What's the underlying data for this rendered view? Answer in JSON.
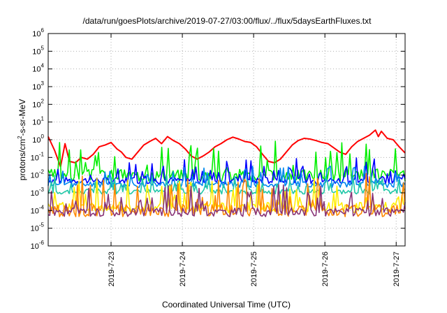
{
  "chart_data": {
    "type": "line",
    "title": "/data/run/goesPlots/archive/2019-07-27/03:00/flux/../flux/5daysEarthFluxes.txt",
    "xlabel": "Coordinated Universal Time (UTC)",
    "ylabel_parts": [
      "protons/cm",
      "2",
      "-s-sr-MeV"
    ],
    "y_scale": "log",
    "ylim": [
      1e-06,
      1000000.0
    ],
    "y_ticks": [
      {
        "base": "10",
        "exp": "6",
        "value": 1000000.0
      },
      {
        "base": "10",
        "exp": "5",
        "value": 100000.0
      },
      {
        "base": "10",
        "exp": "4",
        "value": 10000.0
      },
      {
        "base": "10",
        "exp": "3",
        "value": 1000.0
      },
      {
        "base": "10",
        "exp": "2",
        "value": 100.0
      },
      {
        "base": "10",
        "exp": "1",
        "value": 10.0
      },
      {
        "base": "10",
        "exp": "0",
        "value": 1.0
      },
      {
        "base": "10",
        "exp": "-1",
        "value": 0.1
      },
      {
        "base": "10",
        "exp": "-2",
        "value": 0.01
      },
      {
        "base": "10",
        "exp": "-3",
        "value": 0.001
      },
      {
        "base": "10",
        "exp": "-4",
        "value": 0.0001
      },
      {
        "base": "10",
        "exp": "-5",
        "value": 1e-05
      },
      {
        "base": "10",
        "exp": "-6",
        "value": 1e-06
      }
    ],
    "xlim": [
      "2019-07-22 02:50",
      "2019-07-27 03:00"
    ],
    "x_ticks": [
      {
        "label": "2019-7-23",
        "value": "2019-07-23 00:00"
      },
      {
        "label": "2019-7-24",
        "value": "2019-07-24 00:00"
      },
      {
        "label": "2019-7-25",
        "value": "2019-07-25 00:00"
      },
      {
        "label": "2019-7-26",
        "value": "2019-07-26 00:00"
      },
      {
        "label": "2019-7-27",
        "value": "2019-07-27 00:00"
      }
    ],
    "grid": true,
    "series": [
      {
        "color": "#ff0000",
        "points": [
          [
            "2019-07-22 02:50",
            1.5
          ],
          [
            "2019-07-22 05:00",
            0.25
          ],
          [
            "2019-07-22 07:00",
            0.03
          ],
          [
            "2019-07-22 08:30",
            0.6
          ],
          [
            "2019-07-22 10:00",
            0.06
          ],
          [
            "2019-07-22 12:00",
            0.05
          ],
          [
            "2019-07-22 14:00",
            0.1
          ],
          [
            "2019-07-22 16:00",
            0.08
          ],
          [
            "2019-07-22 18:00",
            0.15
          ],
          [
            "2019-07-22 20:00",
            0.4
          ],
          [
            "2019-07-22 22:00",
            0.5
          ],
          [
            "2019-07-23 00:00",
            0.7
          ],
          [
            "2019-07-23 02:00",
            0.3
          ],
          [
            "2019-07-23 03:30",
            0.2
          ],
          [
            "2019-07-23 05:00",
            0.1
          ],
          [
            "2019-07-23 07:00",
            0.08
          ],
          [
            "2019-07-23 09:00",
            0.2
          ],
          [
            "2019-07-23 11:00",
            0.5
          ],
          [
            "2019-07-23 13:00",
            0.8
          ],
          [
            "2019-07-23 15:00",
            1.2
          ],
          [
            "2019-07-23 17:00",
            0.6
          ],
          [
            "2019-07-23 19:00",
            1.5
          ],
          [
            "2019-07-23 21:00",
            0.9
          ],
          [
            "2019-07-23 23:00",
            0.6
          ],
          [
            "2019-07-24 01:00",
            0.3
          ],
          [
            "2019-07-24 03:00",
            0.12
          ],
          [
            "2019-07-24 05:00",
            0.08
          ],
          [
            "2019-07-24 07:00",
            0.12
          ],
          [
            "2019-07-24 09:00",
            0.2
          ],
          [
            "2019-07-24 11:00",
            0.4
          ],
          [
            "2019-07-24 13:00",
            0.6
          ],
          [
            "2019-07-24 15:00",
            1.0
          ],
          [
            "2019-07-24 17:00",
            1.4
          ],
          [
            "2019-07-24 19:00",
            1.1
          ],
          [
            "2019-07-24 21:00",
            0.8
          ],
          [
            "2019-07-24 23:00",
            0.7
          ],
          [
            "2019-07-25 01:00",
            0.4
          ],
          [
            "2019-07-25 03:00",
            0.15
          ],
          [
            "2019-07-25 05:00",
            0.06
          ],
          [
            "2019-07-25 07:00",
            0.05
          ],
          [
            "2019-07-25 09:00",
            0.08
          ],
          [
            "2019-07-25 11:00",
            0.2
          ],
          [
            "2019-07-25 13:00",
            0.5
          ],
          [
            "2019-07-25 15:00",
            0.9
          ],
          [
            "2019-07-25 17:00",
            1.2
          ],
          [
            "2019-07-25 19:00",
            1.1
          ],
          [
            "2019-07-25 21:00",
            0.9
          ],
          [
            "2019-07-25 23:00",
            0.7
          ],
          [
            "2019-07-26 01:00",
            0.6
          ],
          [
            "2019-07-26 03:00",
            0.35
          ],
          [
            "2019-07-26 05:00",
            0.2
          ],
          [
            "2019-07-26 07:00",
            0.15
          ],
          [
            "2019-07-26 09:00",
            0.4
          ],
          [
            "2019-07-26 11:00",
            0.8
          ],
          [
            "2019-07-26 13:00",
            1.2
          ],
          [
            "2019-07-26 15:00",
            1.8
          ],
          [
            "2019-07-26 17:00",
            3.5
          ],
          [
            "2019-07-26 18:00",
            1.5
          ],
          [
            "2019-07-26 19:00",
            3.0
          ],
          [
            "2019-07-26 21:00",
            1.2
          ],
          [
            "2019-07-26 23:00",
            1.0
          ],
          [
            "2019-07-27 01:00",
            0.4
          ],
          [
            "2019-07-27 03:00",
            0.18
          ]
        ]
      },
      {
        "color": "#00ee00",
        "base": 0.01,
        "spread": 0.7,
        "seed": 3
      },
      {
        "color": "#0000ff",
        "base": 0.005,
        "spread": 0.4,
        "seed": 7
      },
      {
        "color": "#0088ee",
        "base": 0.003,
        "spread": 0.35,
        "seed": 11
      },
      {
        "color": "#20c8a8",
        "base": 0.0012,
        "spread": 0.3,
        "seed": 17
      },
      {
        "color": "#ffee00",
        "base": 0.00015,
        "spread": 0.6,
        "seed": 23
      },
      {
        "color": "#ff8800",
        "base": 0.0001,
        "spread": 0.7,
        "seed": 29
      },
      {
        "color": "#883377",
        "base": 8e-05,
        "spread": 0.5,
        "seed": 31
      }
    ]
  }
}
